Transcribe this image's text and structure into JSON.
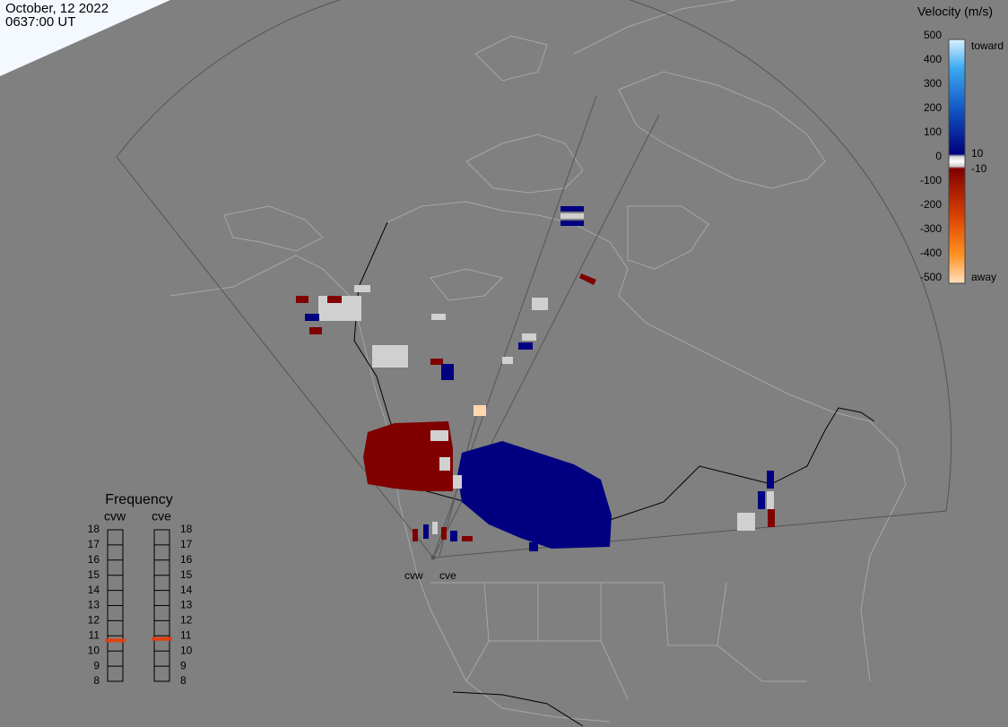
{
  "header": {
    "date": "October, 12 2022",
    "time": "0637:00 UT"
  },
  "velocity_scale": {
    "title": "Velocity (m/s)",
    "ticks": [
      500,
      400,
      300,
      200,
      100,
      0,
      -100,
      -200,
      -300,
      -400,
      -500
    ],
    "toward": "toward",
    "away": "away",
    "inner_ticks": [
      10,
      -10
    ]
  },
  "frequency": {
    "title": "Frequency",
    "ticks": [
      18,
      17,
      16,
      15,
      14,
      13,
      12,
      11,
      10,
      9,
      8
    ],
    "radars": [
      {
        "name": "cvw",
        "value": 10.7
      },
      {
        "name": "cve",
        "value": 10.8
      }
    ]
  },
  "sites": [
    "cvw",
    "cve"
  ]
}
